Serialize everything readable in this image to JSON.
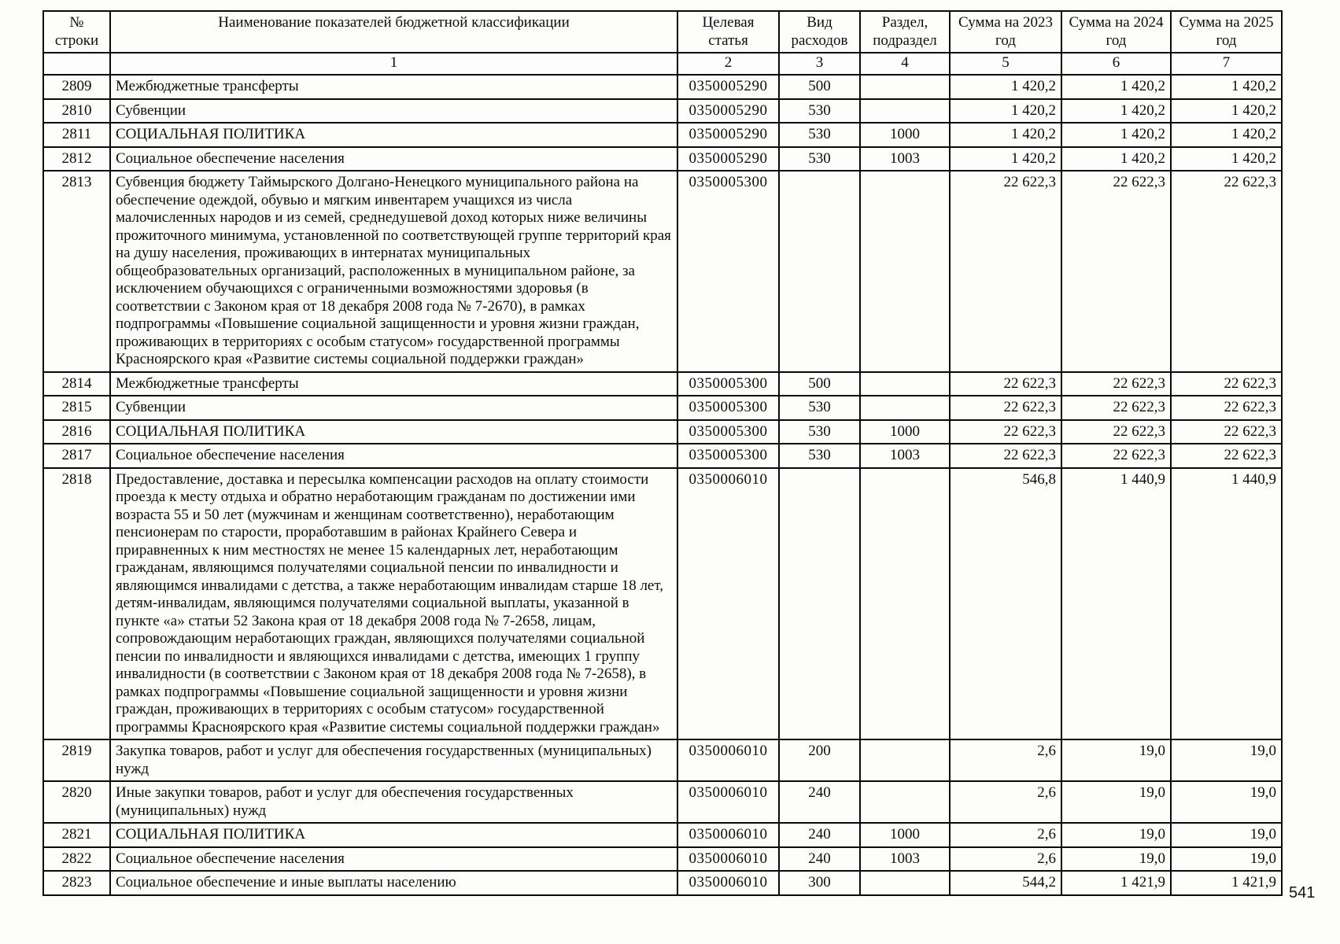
{
  "page_number": "541",
  "table": {
    "headers": [
      "№ строки",
      "Наименование показателей бюджетной классификации",
      "Целевая статья",
      "Вид расходов",
      "Раздел, подраздел",
      "Сумма на 2023 год",
      "Сумма на 2024 год",
      "Сумма на 2025 год"
    ],
    "column_numbers": [
      "",
      "1",
      "2",
      "3",
      "4",
      "5",
      "6",
      "7"
    ],
    "rows": [
      {
        "num": "2809",
        "name": "Межбюджетные трансферты",
        "article": "0350005290",
        "expense_type": "500",
        "section": "",
        "sum2023": "1 420,2",
        "sum2024": "1 420,2",
        "sum2025": "1 420,2"
      },
      {
        "num": "2810",
        "name": "Субвенции",
        "article": "0350005290",
        "expense_type": "530",
        "section": "",
        "sum2023": "1 420,2",
        "sum2024": "1 420,2",
        "sum2025": "1 420,2"
      },
      {
        "num": "2811",
        "name": "СОЦИАЛЬНАЯ ПОЛИТИКА",
        "article": "0350005290",
        "expense_type": "530",
        "section": "1000",
        "sum2023": "1 420,2",
        "sum2024": "1 420,2",
        "sum2025": "1 420,2"
      },
      {
        "num": "2812",
        "name": "Социальное обеспечение населения",
        "article": "0350005290",
        "expense_type": "530",
        "section": "1003",
        "sum2023": "1 420,2",
        "sum2024": "1 420,2",
        "sum2025": "1 420,2"
      },
      {
        "num": "2813",
        "name": "Субвенция бюджету Таймырского Долгано-Ненецкого муниципального района на обеспечение одеждой, обувью и мягким инвентарем учащихся из числа малочисленных народов и из семей, среднедушевой доход которых ниже величины прожиточного минимума, установленной по соответствующей группе территорий края на душу населения, проживающих в интернатах муниципальных общеобразовательных организаций, расположенных в муниципальном районе, за исключением обучающихся с ограниченными возможностями здоровья (в соответствии с Законом края от 18 декабря 2008 года № 7-2670), в рамках подпрограммы «Повышение социальной защищенности и уровня жизни граждан, проживающих в территориях с особым статусом» государственной программы Красноярского края «Развитие системы социальной поддержки граждан»",
        "article": "0350005300",
        "expense_type": "",
        "section": "",
        "sum2023": "22 622,3",
        "sum2024": "22 622,3",
        "sum2025": "22 622,3"
      },
      {
        "num": "2814",
        "name": "Межбюджетные трансферты",
        "article": "0350005300",
        "expense_type": "500",
        "section": "",
        "sum2023": "22 622,3",
        "sum2024": "22 622,3",
        "sum2025": "22 622,3"
      },
      {
        "num": "2815",
        "name": "Субвенции",
        "article": "0350005300",
        "expense_type": "530",
        "section": "",
        "sum2023": "22 622,3",
        "sum2024": "22 622,3",
        "sum2025": "22 622,3"
      },
      {
        "num": "2816",
        "name": "СОЦИАЛЬНАЯ ПОЛИТИКА",
        "article": "0350005300",
        "expense_type": "530",
        "section": "1000",
        "sum2023": "22 622,3",
        "sum2024": "22 622,3",
        "sum2025": "22 622,3"
      },
      {
        "num": "2817",
        "name": "Социальное обеспечение населения",
        "article": "0350005300",
        "expense_type": "530",
        "section": "1003",
        "sum2023": "22 622,3",
        "sum2024": "22 622,3",
        "sum2025": "22 622,3"
      },
      {
        "num": "2818",
        "name": "Предоставление, доставка и пересылка компенсации расходов на оплату стоимости проезда к месту отдыха и обратно неработающим гражданам по достижении ими возраста 55 и 50 лет (мужчинам и женщинам соответственно), неработающим пенсионерам по старости, проработавшим в районах Крайнего Севера и приравненных к ним местностях не менее 15 календарных лет,  неработающим гражданам, являющимся получателями социальной пенсии по инвалидности и являющимся инвалидами с детства, а также неработающим инвалидам старше 18 лет, детям-инвалидам, являющимся получателями социальной выплаты, указанной в пункте «а» статьи 52 Закона края от 18 декабря 2008 года № 7-2658, лицам, сопровождающим неработающих граждан, являющихся получателями социальной пенсии по инвалидности и являющихся инвалидами с детства, имеющих 1 группу инвалидности (в соответствии с Законом края от 18 декабря 2008 года № 7-2658), в рамках подпрограммы «Повышение социальной защищенности и уровня жизни граждан, проживающих в территориях с особым статусом» государственной программы Красноярского края «Развитие системы социальной поддержки граждан»",
        "article": "0350006010",
        "expense_type": "",
        "section": "",
        "sum2023": "546,8",
        "sum2024": "1 440,9",
        "sum2025": "1 440,9"
      },
      {
        "num": "2819",
        "name": "Закупка товаров, работ и услуг для обеспечения государственных (муниципальных) нужд",
        "article": "0350006010",
        "expense_type": "200",
        "section": "",
        "sum2023": "2,6",
        "sum2024": "19,0",
        "sum2025": "19,0"
      },
      {
        "num": "2820",
        "name": "Иные закупки товаров, работ и услуг для обеспечения государственных (муниципальных) нужд",
        "article": "0350006010",
        "expense_type": "240",
        "section": "",
        "sum2023": "2,6",
        "sum2024": "19,0",
        "sum2025": "19,0"
      },
      {
        "num": "2821",
        "name": "СОЦИАЛЬНАЯ ПОЛИТИКА",
        "article": "0350006010",
        "expense_type": "240",
        "section": "1000",
        "sum2023": "2,6",
        "sum2024": "19,0",
        "sum2025": "19,0"
      },
      {
        "num": "2822",
        "name": "Социальное обеспечение населения",
        "article": "0350006010",
        "expense_type": "240",
        "section": "1003",
        "sum2023": "2,6",
        "sum2024": "19,0",
        "sum2025": "19,0"
      },
      {
        "num": "2823",
        "name": "Социальное обеспечение и иные выплаты населению",
        "article": "0350006010",
        "expense_type": "300",
        "section": "",
        "sum2023": "544,2",
        "sum2024": "1 421,9",
        "sum2025": "1 421,9"
      }
    ]
  }
}
